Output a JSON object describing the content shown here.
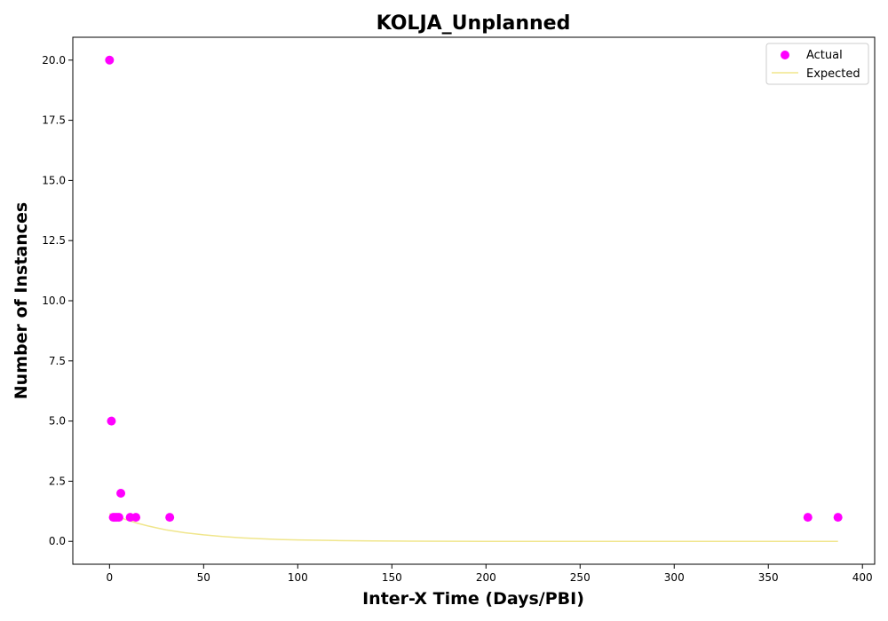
{
  "chart_data": {
    "type": "scatter",
    "title": "KOLJA_Unplanned",
    "xlabel": "Inter-X Time (Days/PBI)",
    "ylabel": "Number of Instances",
    "xlim": [
      -19.5,
      406.5
    ],
    "ylim": [
      -0.95,
      20.95
    ],
    "x_ticks": [
      0,
      50,
      100,
      150,
      200,
      250,
      300,
      350,
      400
    ],
    "x_tick_labels": [
      "0",
      "50",
      "100",
      "150",
      "200",
      "250",
      "300",
      "350",
      "400"
    ],
    "y_ticks": [
      0,
      2.5,
      5,
      7.5,
      10,
      12.5,
      15,
      17.5,
      20
    ],
    "y_tick_labels": [
      "0.0",
      "2.5",
      "5.0",
      "7.5",
      "10.0",
      "12.5",
      "15.0",
      "17.5",
      "20.0"
    ],
    "grid": false,
    "legend_position": "upper right",
    "series": [
      {
        "name": "Actual",
        "kind": "scatter",
        "color": "#ff00ff",
        "x": [
          0,
          1,
          2,
          3,
          4,
          5,
          6,
          11,
          14,
          32,
          371,
          387
        ],
        "y": [
          20,
          5,
          1,
          1,
          1,
          1,
          2,
          1,
          1,
          1,
          1,
          1
        ]
      },
      {
        "name": "Expected",
        "kind": "line",
        "color": "#f0e68c",
        "x": [
          0,
          5,
          10,
          15,
          20,
          25,
          30,
          40,
          50,
          60,
          70,
          80,
          90,
          100,
          120,
          140,
          160,
          180,
          200,
          250,
          300,
          350,
          387
        ],
        "y": [
          1.15,
          1.0,
          0.87,
          0.75,
          0.65,
          0.56,
          0.48,
          0.36,
          0.27,
          0.2,
          0.15,
          0.11,
          0.08,
          0.06,
          0.035,
          0.02,
          0.01,
          0.006,
          0.003,
          0.001,
          0.0,
          0.0,
          0.0
        ]
      }
    ]
  }
}
